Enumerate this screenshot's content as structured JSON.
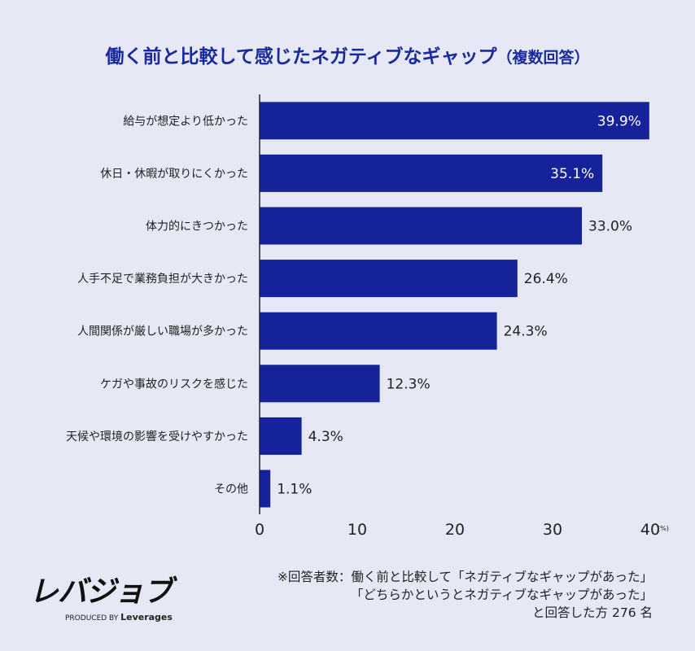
{
  "title": "働く前と比較して感じたネガティブなギャップ",
  "title_suffix": "（複数回答）",
  "chart_data": {
    "type": "bar",
    "orientation": "horizontal",
    "title": "働く前と比較して感じたネガティブなギャップ（複数回答）",
    "categories": [
      "給与が想定より低かった",
      "休日・休暇が取りにくかった",
      "体力的にきつかった",
      "人手不足で業務負担が大きかった",
      "人間関係が厳しい職場が多かった",
      "ケガや事故のリスクを感じた",
      "天候や環境の影響を受けやすかった",
      "その他"
    ],
    "values": [
      39.9,
      35.1,
      33.0,
      26.4,
      24.3,
      12.3,
      4.3,
      1.1
    ],
    "data_labels": [
      "39.9%",
      "35.1%",
      "33.0%",
      "26.4%",
      "24.3%",
      "12.3%",
      "4.3%",
      "1.1%"
    ],
    "xlim": [
      0,
      40
    ],
    "xticks": [
      "0",
      "10",
      "20",
      "30",
      "40"
    ],
    "xunit": "(%)",
    "grid": false,
    "bar_color": "#15229a",
    "background": "#e6e8f5"
  },
  "logo": {
    "mark": "レバジョブ",
    "produced_by": "PRODUCED BY",
    "company": "Leverages"
  },
  "note": [
    "※回答者数：働く前と比較して「ネガティブなギャップがあった」",
    "「どちらかというとネガティブなギャップがあった」",
    "と回答した方 276 名"
  ]
}
